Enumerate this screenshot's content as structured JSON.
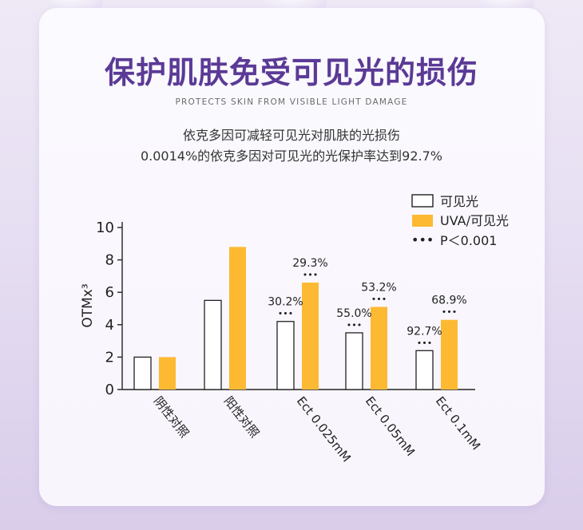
{
  "header": {
    "title": "保护肌肤免受可见光的损伤",
    "subtitle_en": "PROTECTS SKIN FROM VISIBLE LIGHT DAMAGE",
    "desc_line1": "依克多因可减轻可见光对肌肤的光损伤",
    "desc_line2": "0.0014%的依克多因对可见光的光保护率达到92.7%"
  },
  "colors": {
    "title": "#5b3a96",
    "bar_fill_visible": "#ffffff",
    "bar_fill_uva": "#fdb932",
    "bar_stroke": "#222222"
  },
  "chart_data": {
    "type": "bar",
    "categories": [
      "阴性对照",
      "阳性对照",
      "Ect 0.025mM",
      "Ect 0.05mM",
      "Ect 0.1mM"
    ],
    "series": [
      {
        "name": "可见光",
        "values": [
          2.0,
          5.5,
          4.2,
          3.5,
          2.4
        ],
        "labels": [
          "",
          "",
          "30.2%",
          "55.0%",
          "92.7%"
        ],
        "sig": [
          false,
          false,
          true,
          true,
          true
        ]
      },
      {
        "name": "UVA/可见光",
        "values": [
          2.0,
          8.8,
          6.6,
          5.1,
          4.3
        ],
        "labels": [
          "",
          "",
          "29.3%",
          "53.2%",
          "68.9%"
        ],
        "sig": [
          false,
          false,
          true,
          true,
          true
        ]
      }
    ],
    "ylabel": "OTMx³",
    "ylim": [
      0,
      10
    ],
    "yticks": [
      0,
      2,
      4,
      6,
      8,
      10
    ],
    "legend_sig_marker": "•••",
    "legend_sig_label": "P＜0.001",
    "legend_position": "top-right"
  }
}
